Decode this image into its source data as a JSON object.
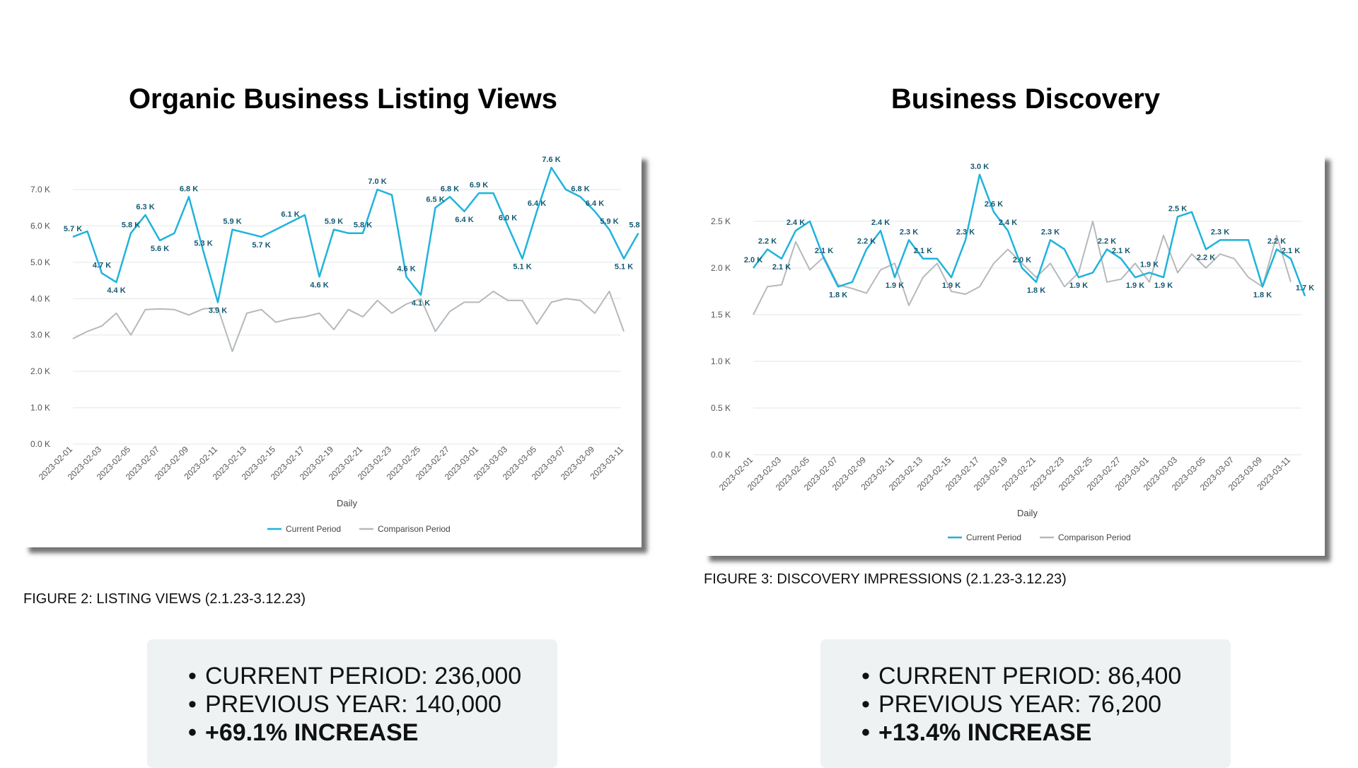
{
  "left": {
    "title": "Organic Business Listing Views",
    "caption": "FIGURE 2: LISTING VIEWS (2.1.23-3.12.23)",
    "stats": [
      "CURRENT PERIOD: 236,000",
      "PREVIOUS YEAR: 140,000",
      "+69.1% INCREASE"
    ]
  },
  "right": {
    "title": "Business Discovery",
    "caption": "FIGURE 3: DISCOVERY IMPRESSIONS (2.1.23-3.12.23)",
    "stats": [
      "CURRENT PERIOD: 86,400",
      "PREVIOUS YEAR: 76,200",
      "+13.4% INCREASE"
    ]
  },
  "chart_data": [
    {
      "type": "line",
      "title": "Organic Business Listing Views",
      "xlabel": "Daily",
      "ylim": [
        0,
        7
      ],
      "yticks": [
        "0.0 K",
        "1.0 K",
        "2.0 K",
        "3.0 K",
        "4.0 K",
        "5.0 K",
        "6.0 K",
        "7.0 K"
      ],
      "x_tick_labels": [
        "2023-02-01",
        "2023-02-03",
        "2023-02-05",
        "2023-02-07",
        "2023-02-09",
        "2023-02-11",
        "2023-02-13",
        "2023-02-15",
        "2023-02-17",
        "2023-02-19",
        "2023-02-21",
        "2023-02-23",
        "2023-02-25",
        "2023-02-27",
        "2023-03-01",
        "2023-03-03",
        "2023-03-05",
        "2023-03-07",
        "2023-03-09",
        "2023-03-11"
      ],
      "grid": true,
      "legend_position": "bottom",
      "series": [
        {
          "name": "Current Period",
          "color": "#1fb3dc",
          "values": [
            5.7,
            5.85,
            4.7,
            4.45,
            5.8,
            6.3,
            5.6,
            5.8,
            6.8,
            5.3,
            3.9,
            5.9,
            5.8,
            5.7,
            5.9,
            6.1,
            6.3,
            4.6,
            5.9,
            5.8,
            5.8,
            7.0,
            6.85,
            4.6,
            4.1,
            6.5,
            6.8,
            6.4,
            6.9,
            6.9,
            6.0,
            5.1,
            6.4,
            7.6,
            7.0,
            6.8,
            6.4,
            5.9,
            5.1,
            5.8
          ],
          "labels": [
            "5.7 K",
            "",
            "4.7 K",
            "4.4 K",
            "5.8 K",
            "6.3 K",
            "5.6 K",
            "",
            "6.8 K",
            "5.3 K",
            "3.9 K",
            "5.9 K",
            "",
            "5.7 K",
            "",
            "6.1 K",
            "",
            "4.6 K",
            "5.9 K",
            "",
            "5.8 K",
            "7.0 K",
            "",
            "4.6 K",
            "4.1 K",
            "6.5 K",
            "6.8 K",
            "6.4 K",
            "6.9 K",
            "",
            "6.0 K",
            "5.1 K",
            "6.4 K",
            "7.6 K",
            "",
            "6.8 K",
            "6.4 K",
            "5.9 K",
            "5.1 K",
            "5.8 K"
          ]
        },
        {
          "name": "Comparison Period",
          "color": "#b5b9bc",
          "values": [
            2.9,
            3.1,
            3.25,
            3.6,
            3.0,
            3.7,
            3.72,
            3.7,
            3.55,
            3.72,
            3.75,
            2.55,
            3.6,
            3.7,
            3.35,
            3.45,
            3.5,
            3.6,
            3.15,
            3.7,
            3.5,
            3.95,
            3.6,
            3.85,
            4.0,
            3.1,
            3.65,
            3.9,
            3.9,
            4.2,
            3.95,
            3.95,
            3.3,
            3.9,
            4.0,
            3.95,
            3.6,
            4.2,
            3.1
          ]
        }
      ]
    },
    {
      "type": "line",
      "title": "Business Discovery",
      "xlabel": "Daily",
      "ylim": [
        0,
        2.5
      ],
      "yticks": [
        "0.0 K",
        "0.5 K",
        "1.0 K",
        "1.5 K",
        "2.0 K",
        "2.5 K"
      ],
      "x_tick_labels": [
        "2023-02-01",
        "2023-02-03",
        "2023-02-05",
        "2023-02-07",
        "2023-02-09",
        "2023-02-11",
        "2023-02-13",
        "2023-02-15",
        "2023-02-17",
        "2023-02-19",
        "2023-02-21",
        "2023-02-23",
        "2023-02-25",
        "2023-02-27",
        "2023-03-01",
        "2023-03-03",
        "2023-03-05",
        "2023-03-07",
        "2023-03-09",
        "2023-03-11"
      ],
      "grid": true,
      "legend_position": "bottom",
      "series": [
        {
          "name": "Current Period",
          "color": "#1fb3dc",
          "values": [
            2.0,
            2.2,
            2.1,
            2.4,
            2.5,
            2.1,
            1.8,
            1.85,
            2.2,
            2.4,
            1.9,
            2.3,
            2.1,
            2.1,
            1.9,
            2.3,
            3.0,
            2.6,
            2.4,
            2.0,
            1.85,
            2.3,
            2.2,
            1.9,
            1.95,
            2.2,
            2.1,
            1.9,
            1.95,
            1.9,
            2.55,
            2.6,
            2.2,
            2.3,
            2.3,
            2.3,
            1.8,
            2.2,
            2.1,
            1.7
          ],
          "labels": [
            "2.0 K",
            "2.2 K",
            "2.1 K",
            "2.4 K",
            "",
            "2.1 K",
            "1.8 K",
            "",
            "2.2 K",
            "2.4 K",
            "1.9 K",
            "2.3 K",
            "2.1 K",
            "",
            "1.9 K",
            "2.3 K",
            "3.0 K",
            "2.6 K",
            "2.4 K",
            "2.0 K",
            "1.8 K",
            "2.3 K",
            "",
            "1.9 K",
            "",
            "2.2 K",
            "2.1 K",
            "1.9 K",
            "1.9 K",
            "1.9 K",
            "2.5 K",
            "",
            "2.2 K",
            "2.3 K",
            "",
            "",
            "1.8 K",
            "2.2 K",
            "2.1 K",
            "1.7 K"
          ]
        },
        {
          "name": "Comparison Period",
          "color": "#b5b9bc",
          "values": [
            1.5,
            1.8,
            1.82,
            2.28,
            1.98,
            2.12,
            1.82,
            1.78,
            1.73,
            1.98,
            2.05,
            1.6,
            1.9,
            2.05,
            1.75,
            1.72,
            1.8,
            2.05,
            2.2,
            2.05,
            1.9,
            2.05,
            1.8,
            1.95,
            2.5,
            1.85,
            1.88,
            2.05,
            1.85,
            2.35,
            1.95,
            2.15,
            2.0,
            2.15,
            2.1,
            1.9,
            1.8,
            2.35,
            1.85
          ]
        }
      ]
    }
  ]
}
